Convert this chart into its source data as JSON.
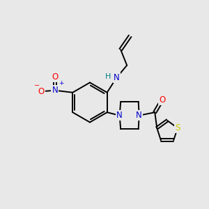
{
  "background_color": "#e8e8e8",
  "bond_color": "#000000",
  "atom_colors": {
    "N": "#0000cc",
    "O": "#ff0000",
    "S": "#cccc00",
    "H": "#008080",
    "C": "#000000"
  },
  "figsize": [
    3.0,
    3.0
  ],
  "dpi": 100
}
